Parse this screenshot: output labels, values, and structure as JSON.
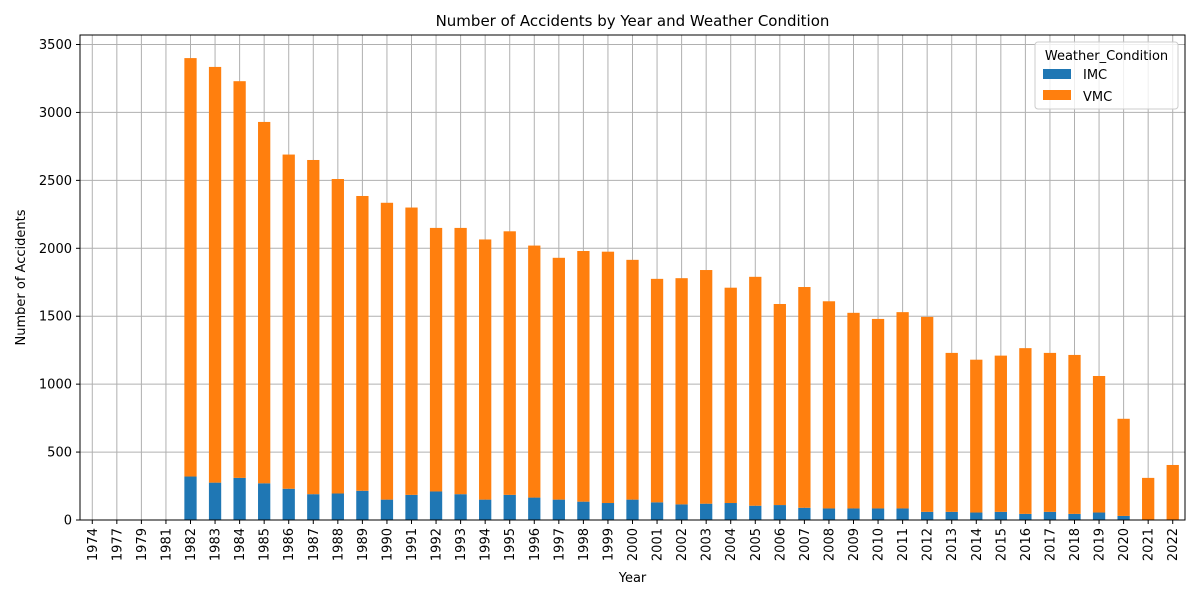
{
  "chart_data": {
    "type": "bar",
    "stacked": true,
    "title": "Number of Accidents by Year and Weather Condition",
    "xlabel": "Year",
    "ylabel": "Number of Accidents",
    "ylim": [
      0,
      3570
    ],
    "yticks": [
      0,
      500,
      1000,
      1500,
      2000,
      2500,
      3000,
      3500
    ],
    "grid": true,
    "legend": {
      "title": "Weather_Condition",
      "placement": "top-right"
    },
    "categories": [
      "1974",
      "1977",
      "1979",
      "1981",
      "1982",
      "1983",
      "1984",
      "1985",
      "1986",
      "1987",
      "1988",
      "1989",
      "1990",
      "1991",
      "1992",
      "1993",
      "1994",
      "1995",
      "1996",
      "1997",
      "1998",
      "1999",
      "2000",
      "2001",
      "2002",
      "2003",
      "2004",
      "2005",
      "2006",
      "2007",
      "2008",
      "2009",
      "2010",
      "2011",
      "2012",
      "2013",
      "2014",
      "2015",
      "2016",
      "2017",
      "2018",
      "2019",
      "2020",
      "2021",
      "2022"
    ],
    "series": [
      {
        "name": "IMC",
        "color": "#1f77b4",
        "values": [
          0,
          0,
          0,
          0,
          320,
          275,
          310,
          270,
          230,
          190,
          195,
          215,
          150,
          185,
          210,
          190,
          150,
          185,
          165,
          150,
          135,
          125,
          150,
          130,
          115,
          120,
          125,
          105,
          110,
          90,
          85,
          85,
          85,
          85,
          60,
          60,
          55,
          60,
          45,
          60,
          45,
          55,
          30,
          0,
          0
        ]
      },
      {
        "name": "VMC",
        "color": "#ff7f0e",
        "values": [
          1,
          1,
          1,
          1,
          3080,
          3060,
          2920,
          2660,
          2460,
          2460,
          2315,
          2170,
          2185,
          2115,
          1940,
          1960,
          1915,
          1940,
          1855,
          1780,
          1845,
          1850,
          1765,
          1645,
          1665,
          1720,
          1585,
          1685,
          1480,
          1625,
          1525,
          1440,
          1395,
          1445,
          1435,
          1170,
          1125,
          1150,
          1220,
          1170,
          1170,
          1005,
          715,
          310,
          405
        ]
      }
    ]
  }
}
